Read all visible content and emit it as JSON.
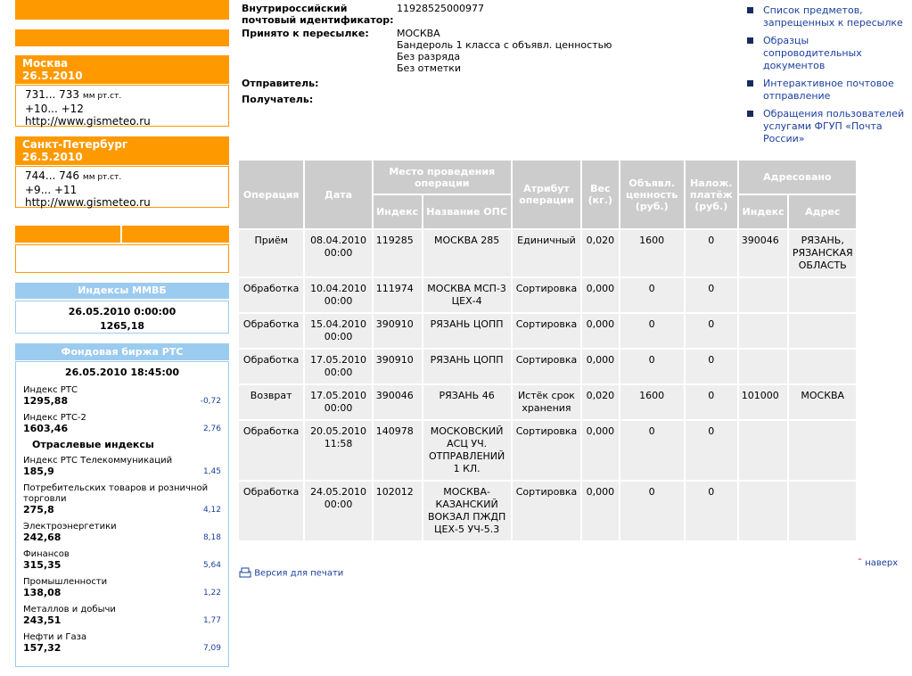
{
  "weather": [
    {
      "city": "Москва",
      "date": "26.5.2010",
      "pressure": "731... 733",
      "pressure_unit": "мм рт.ст.",
      "temperature": "+10... +12",
      "link": "http://www.gismeteo.ru"
    },
    {
      "city": "Санкт-Петербург",
      "date": "26.5.2010",
      "pressure": "744... 746",
      "pressure_unit": "мм рт.ст.",
      "temperature": "+9... +11",
      "link": "http://www.gismeteo.ru"
    }
  ],
  "micex": {
    "title": "Индексы ММВБ",
    "datetime": "26.05.2010 0:00:00",
    "value": "1265,18"
  },
  "rts": {
    "title": "Фондовая биржа РТС",
    "datetime": "26.05.2010 18:45:00",
    "main_items": [
      {
        "name": "Индекс РТС",
        "value": "1295,88",
        "change": "-0,72"
      },
      {
        "name": "Индекс РТС-2",
        "value": "1603,46",
        "change": "2,76"
      }
    ],
    "sector_title": "Отраслевые индексы",
    "sector_items": [
      {
        "name": "Индекс РТС Телекоммуникаций",
        "value": "185,9",
        "change": "1,45"
      },
      {
        "name": "Потребительских товаров и розничной торговли",
        "value": "275,8",
        "change": "4,12"
      },
      {
        "name": "Электроэнергетики",
        "value": "242,68",
        "change": "8,18"
      },
      {
        "name": "Финансов",
        "value": "315,35",
        "change": "5,64"
      },
      {
        "name": "Промышленности",
        "value": "138,08",
        "change": "1,22"
      },
      {
        "name": "Металлов и добычи",
        "value": "243,51",
        "change": "1,77"
      },
      {
        "name": "Нефти и Газа",
        "value": "157,32",
        "change": "7,09"
      }
    ]
  },
  "info": [
    {
      "label": "Внутрироссийский почтовый идентификатор:",
      "lines": [
        "11928525000977"
      ]
    },
    {
      "label": "Принято к пересылке:",
      "lines": [
        "МОСКВА",
        "Бандероль 1 класса с объявл. ценностью",
        "Без разряда",
        "Без отметки"
      ]
    },
    {
      "label": "Отправитель:"
    },
    {
      "label": "Получатель:"
    }
  ],
  "links": [
    "Список предметов, запрещенных к пересылке",
    "Образцы сопроводительных документов",
    "Интерактивное почтовое отправление",
    "Обращения пользователей услугами ФГУП «Почта России»"
  ],
  "table": {
    "headers": {
      "operation": "Операция",
      "date": "Дата",
      "place": "Место проведения операции",
      "place_index": "Индекс",
      "place_name": "Название ОПС",
      "attribute": "Атрибут операции",
      "weight": "Вес (кг.)",
      "declared": "Объявл. ценность (руб.)",
      "cod": "Налож. платёж (руб.)",
      "addressed": "Адресовано",
      "addr_index": "Индекс",
      "addr": "Адрес"
    },
    "rows": [
      [
        "Приём",
        "08.04.2010 00:00",
        "119285",
        "МОСКВА 285",
        "Единичный",
        "0,020",
        "1600",
        "0",
        "390046",
        "РЯЗАНЬ, РЯЗАНСКАЯ ОБЛАСТЬ"
      ],
      [
        "Обработка",
        "10.04.2010 00:00",
        "111974",
        "МОСКВА МСП-3 ЦЕХ-4",
        "Сортировка",
        "0,000",
        "0",
        "0",
        null,
        null
      ],
      [
        "Обработка",
        "15.04.2010 00:00",
        "390910",
        "РЯЗАНЬ ЦОПП",
        "Сортировка",
        "0,000",
        "0",
        "0",
        null,
        null
      ],
      [
        "Обработка",
        "17.05.2010 00:00",
        "390910",
        "РЯЗАНЬ ЦОПП",
        "Сортировка",
        "0,000",
        "0",
        "0",
        null,
        null
      ],
      [
        "Возврат",
        "17.05.2010 00:00",
        "390046",
        "РЯЗАНЬ 46",
        "Истёк срок хранения",
        "0,020",
        "1600",
        "0",
        "101000",
        "МОСКВА"
      ],
      [
        "Обработка",
        "20.05.2010 11:58",
        "140978",
        "МОСКОВСКИЙ АСЦ УЧ. ОТПРАВЛЕНИЙ 1 КЛ.",
        "Сортировка",
        "0,000",
        "0",
        "0",
        null,
        null
      ],
      [
        "Обработка",
        "24.05.2010 00:00",
        "102012",
        "МОСКВА-КАЗАНСКИЙ ВОКЗАЛ ПЖДП ЦЕХ-5 УЧ-5.3",
        "Сортировка",
        "0,000",
        "0",
        "0",
        null,
        null
      ]
    ]
  },
  "footer": {
    "print": "Версия для печати",
    "top": "наверх"
  }
}
